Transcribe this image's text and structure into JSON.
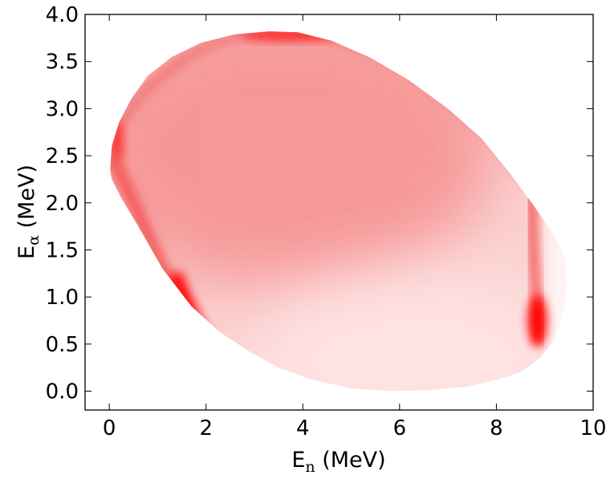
{
  "chart_data": {
    "type": "heatmap",
    "title": "",
    "xlabel": {
      "main": "E",
      "sub": "n",
      "unit": " (MeV)"
    },
    "ylabel": {
      "main": "E",
      "sub": "α",
      "unit": "  (MeV)"
    },
    "xlim": [
      -0.5,
      10
    ],
    "ylim": [
      -0.2,
      4.0
    ],
    "xticks": [
      0,
      2,
      4,
      6,
      8,
      10
    ],
    "xtick_labels": [
      "0",
      "2",
      "4",
      "6",
      "8",
      "10"
    ],
    "yticks": [
      0.0,
      0.5,
      1.0,
      1.5,
      2.0,
      2.5,
      3.0,
      3.5,
      4.0
    ],
    "ytick_labels": [
      "0.0",
      "0.5",
      "1.0",
      "1.5",
      "2.0",
      "2.5",
      "3.0",
      "3.5",
      "4.0"
    ],
    "grid": false,
    "colormap": "white-to-red",
    "colors": {
      "high": "#ff0000",
      "low": "#ffffff"
    },
    "region": {
      "shape": "kinematically allowed ellipse",
      "center": [
        4.75,
        1.9
      ],
      "x_extent": [
        0.0,
        9.45
      ],
      "y_extent": [
        0.0,
        3.82
      ]
    },
    "intensity_features": [
      {
        "name": "left diagonal band",
        "from": [
          0.05,
          2.5
        ],
        "to": [
          2.0,
          0.45
        ],
        "peak_at": [
          1.9,
          0.75
        ]
      },
      {
        "name": "right vertical band",
        "from": [
          8.75,
          2.45
        ],
        "to": [
          8.9,
          0.5
        ],
        "peak_at": [
          8.8,
          0.75
        ]
      },
      {
        "name": "top rim",
        "at": [
          3.7,
          3.78
        ]
      },
      {
        "name": "upper-left rim",
        "at": [
          0.2,
          2.7
        ]
      }
    ]
  }
}
